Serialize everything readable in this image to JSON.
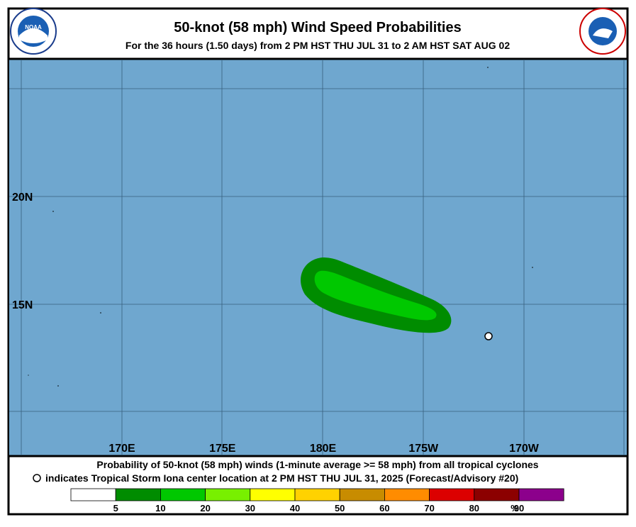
{
  "header": {
    "title": "50-knot (58 mph) Wind Speed Probabilities",
    "subtitle": "For the  36 hours (1.50 days) from 2 PM HST THU JUL 31 to 2 AM HST SAT AUG 02"
  },
  "map": {
    "lon_labels": [
      "170E",
      "175E",
      "180E",
      "175W",
      "170W"
    ],
    "lat_labels": [
      "20N",
      "15N"
    ]
  },
  "footer": {
    "line1": "Probability of 50-knot (58 mph) winds (1-minute average >= 58 mph) from all tropical cyclones",
    "line2": "indicates Tropical Storm Iona center location at 2 PM HST THU JUL 31, 2025 (Forecast/Advisory #20)"
  },
  "colorbar": {
    "labels": [
      "5",
      "10",
      "20",
      "30",
      "40",
      "50",
      "60",
      "70",
      "80",
      "90",
      "%"
    ],
    "colors": [
      "#ffffff",
      "#008c00",
      "#00c800",
      "#78f000",
      "#ffff00",
      "#ffd200",
      "#c88c00",
      "#ff8c00",
      "#dc0000",
      "#8c0000",
      "#8c008c"
    ]
  }
}
